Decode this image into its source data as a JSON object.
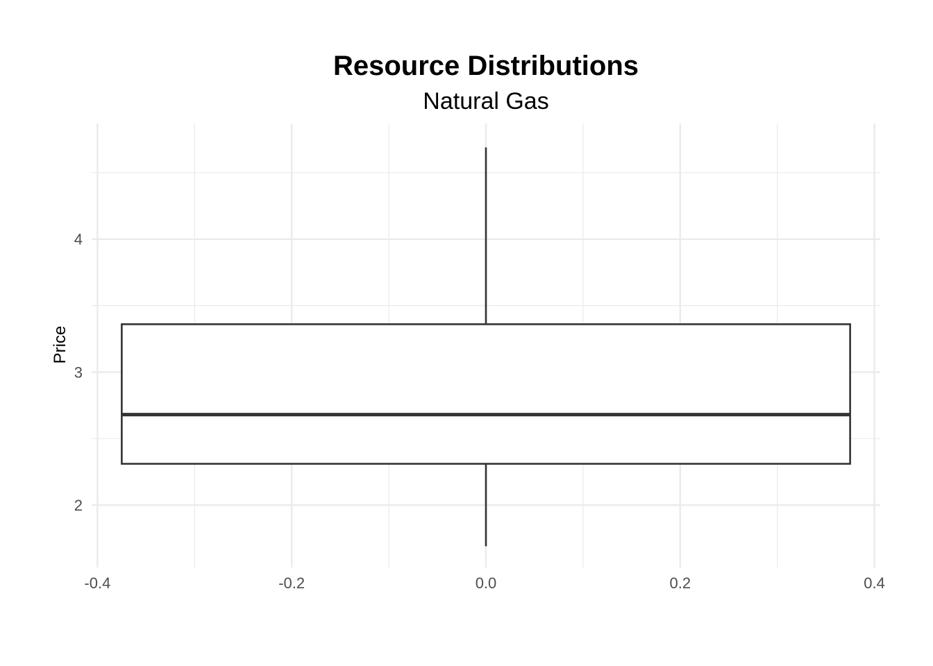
{
  "chart_data": {
    "type": "boxplot",
    "title": "Resource Distributions",
    "subtitle": "Natural Gas",
    "xlabel": "",
    "ylabel": "Price",
    "x_ticks": [
      "-0.4",
      "-0.2",
      "0.0",
      "0.2",
      "0.4"
    ],
    "y_ticks": [
      "2",
      "3",
      "4"
    ],
    "xlim": [
      -0.406,
      0.406
    ],
    "ylim": [
      1.53,
      4.87
    ],
    "grid": true,
    "box": {
      "x_center": 0.0,
      "width": 0.75,
      "whisker_low": 1.69,
      "q1": 2.31,
      "median": 2.68,
      "q3": 3.36,
      "whisker_high": 4.69
    }
  }
}
